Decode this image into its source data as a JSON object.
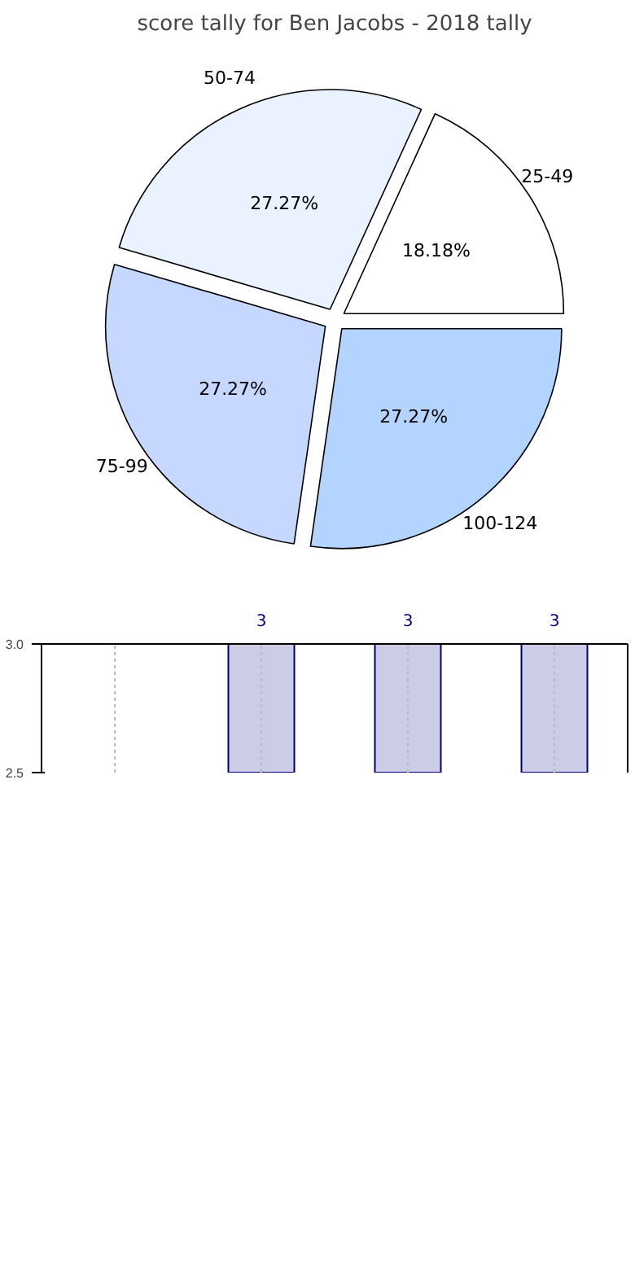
{
  "chart_data": [
    {
      "type": "pie",
      "title": "score tally for Ben Jacobs - 2018 tally",
      "categories": [
        "25-49",
        "50-74",
        "75-99",
        "100-124"
      ],
      "values": [
        18.18,
        27.27,
        27.27,
        27.27
      ],
      "value_labels": [
        "18.18%",
        "27.27%",
        "27.27%",
        "27.27%"
      ],
      "colors": [
        "#ffffff",
        "#eaf1ff",
        "#c6d8ff",
        "#b3d4ff"
      ]
    },
    {
      "type": "bar",
      "categories": [
        null,
        null,
        null,
        null
      ],
      "values": [
        null,
        3,
        3,
        3
      ],
      "color": "#cccce6",
      "ylim": [
        2.5,
        3.0
      ],
      "yticks": [
        {
          "value": 2.5,
          "label": "2.5"
        },
        {
          "value": 3,
          "label": "3.0"
        }
      ],
      "tick_labels": "y",
      "grid": true,
      "data_labels": true
    }
  ]
}
